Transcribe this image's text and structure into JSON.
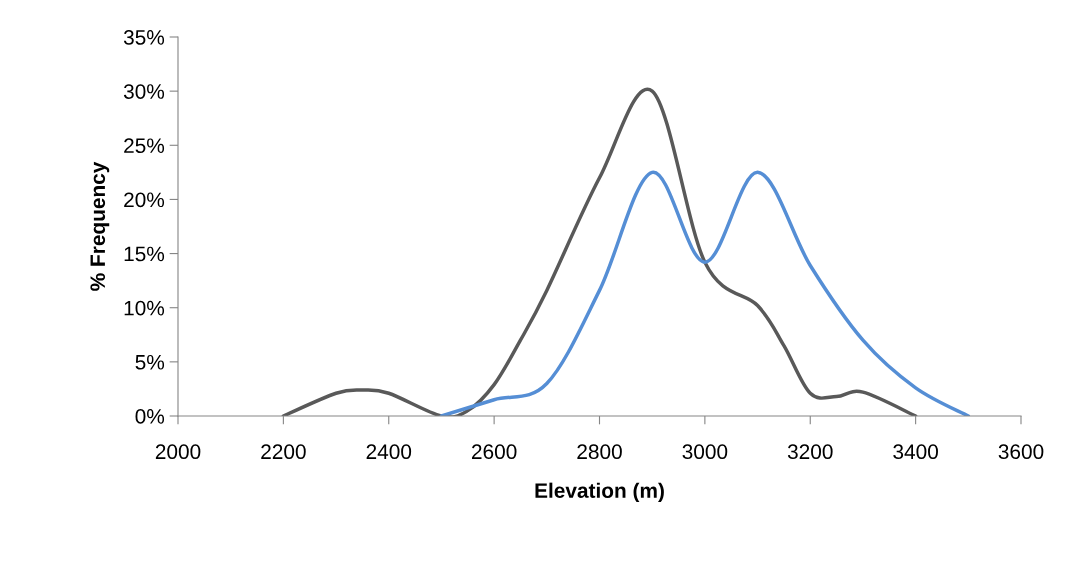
{
  "chart_data": {
    "type": "line",
    "xlabel": "Elevation (m)",
    "ylabel": "% Frequency",
    "xlim": [
      2000,
      3600
    ],
    "xticks": [
      2000,
      2200,
      2400,
      2600,
      2800,
      3000,
      3200,
      3400,
      3600
    ],
    "ylim": [
      0,
      35
    ],
    "yticks": [
      {
        "value": 0,
        "label": "0%"
      },
      {
        "value": 5,
        "label": "5%"
      },
      {
        "value": 10,
        "label": "10%"
      },
      {
        "value": 15,
        "label": "15%"
      },
      {
        "value": 20,
        "label": "20%"
      },
      {
        "value": 25,
        "label": "25%"
      },
      {
        "value": 30,
        "label": "30%"
      },
      {
        "value": 35,
        "label": "35%"
      }
    ],
    "grid": false,
    "marker": "none",
    "line_style": "solid",
    "series": [
      {
        "color": "#595959",
        "x": [
          2200,
          2300,
          2350,
          2400,
          2500,
          2550,
          2600,
          2650,
          2700,
          2800,
          2900,
          3000,
          3100,
          3150,
          3200,
          3250,
          3300,
          3400
        ],
        "values": [
          0,
          2.1,
          2.4,
          2.1,
          0,
          0.5,
          2.9,
          7,
          11.6,
          22,
          30,
          14.2,
          10.2,
          6.5,
          2.1,
          1.8,
          2.2,
          0
        ]
      },
      {
        "color": "#558ed5",
        "x": [
          2500,
          2600,
          2700,
          2800,
          2900,
          3000,
          3100,
          3200,
          3300,
          3400,
          3500
        ],
        "values": [
          0,
          1.5,
          3,
          11.6,
          22.5,
          14.2,
          22.5,
          13.9,
          7,
          2.6,
          0
        ]
      }
    ]
  }
}
